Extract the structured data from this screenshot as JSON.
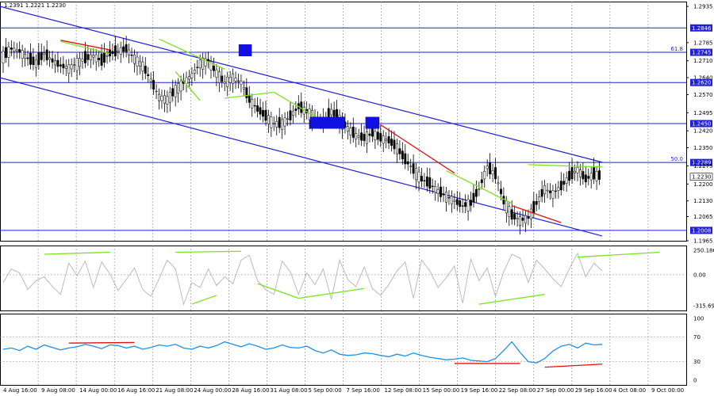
{
  "header": {
    "info": "1.2391 1.2221 1.2230"
  },
  "colors": {
    "candle": "#000000",
    "level": "#1f1fd6",
    "channel": "#1f1fd6",
    "bull_div": "#7ee022",
    "bear_div": "#e01010",
    "cci": "#bbbbbb",
    "rsi": "#1e90e6",
    "marker": "#1010e0",
    "grid": "#888888"
  },
  "chart_data": [
    {
      "type": "candlestick",
      "pane": "price",
      "symbol_info": "1.2391 1.2221 1.2230",
      "ylim": [
        1.1965,
        1.2955
      ],
      "price_ticks": [
        "1.2935",
        "1.2846",
        "1.2785",
        "1.2745",
        "1.2710",
        "1.2640",
        "1.2620",
        "1.2570",
        "1.2495",
        "1.2450",
        "1.2420",
        "1.2350",
        "1.2289",
        "1.2275",
        "1.2230",
        "1.2200",
        "1.2130",
        "1.2065",
        "1.2008",
        "1.1965"
      ],
      "x_labels": [
        "4 Aug 16:00",
        "9 Aug 08:00",
        "14 Aug 00:00",
        "16 Aug 16:00",
        "21 Aug 08:00",
        "24 Aug 00:00",
        "28 Aug 16:00",
        "31 Aug 08:00",
        "5 Sep 00:00",
        "7 Sep 16:00",
        "12 Sep 08:00",
        "15 Sep 00:00",
        "19 Sep 16:00",
        "22 Sep 08:00",
        "27 Sep 00:00",
        "29 Sep 16:00",
        "4 Oct 08:00",
        "9 Oct 00:00"
      ],
      "close_path": [
        1.273,
        1.276,
        1.275,
        1.272,
        1.27,
        1.274,
        1.271,
        1.269,
        1.268,
        1.27,
        1.272,
        1.273,
        1.271,
        1.274,
        1.275,
        1.276,
        1.272,
        1.269,
        1.263,
        1.256,
        1.255,
        1.259,
        1.262,
        1.265,
        1.27,
        1.271,
        1.266,
        1.262,
        1.264,
        1.262,
        1.255,
        1.251,
        1.248,
        1.245,
        1.245,
        1.248,
        1.252,
        1.25,
        1.248,
        1.245,
        1.25,
        1.247,
        1.243,
        1.24,
        1.239,
        1.241,
        1.239,
        1.238,
        1.235,
        1.23,
        1.226,
        1.222,
        1.22,
        1.217,
        1.215,
        1.213,
        1.211,
        1.212,
        1.218,
        1.227,
        1.224,
        1.213,
        1.207,
        1.205,
        1.206,
        1.212,
        1.218,
        1.216,
        1.219,
        1.223,
        1.226,
        1.222,
        1.224,
        1.223
      ],
      "levels": [
        {
          "price": 1.2846,
          "label": "1.2846"
        },
        {
          "price": 1.2745,
          "label": "1.2745",
          "fib": "61.8"
        },
        {
          "price": 1.262,
          "label": "1.2620"
        },
        {
          "price": 1.245,
          "label": "1.2450"
        },
        {
          "price": 1.2289,
          "label": "1.2289",
          "fib": "50.0"
        },
        {
          "price": 1.2008,
          "label": "1.2008"
        }
      ],
      "current_price": "1.2230",
      "channel": {
        "upper": [
          [
            0,
            1.2935
          ],
          [
            73,
            1.229
          ]
        ],
        "lower": [
          [
            0,
            1.264
          ],
          [
            73,
            1.1985
          ]
        ]
      },
      "divergences": [
        {
          "color": "bear",
          "points": [
            [
              7,
              1.2795
            ],
            [
              13,
              1.2755
            ]
          ]
        },
        {
          "color": "bull",
          "points": [
            [
              7,
              1.279
            ],
            [
              13,
              1.274
            ]
          ]
        },
        {
          "color": "bull",
          "points": [
            [
              19,
              1.28
            ],
            [
              27,
              1.2675
            ]
          ]
        },
        {
          "color": "bull",
          "points": [
            [
              21,
              1.2665
            ],
            [
              24,
              1.2545
            ]
          ]
        },
        {
          "color": "bull",
          "points": [
            [
              27,
              1.2555
            ],
            [
              33,
              1.258
            ]
          ]
        },
        {
          "color": "bull",
          "points": [
            [
              33,
              1.258
            ],
            [
              39,
              1.246
            ]
          ]
        },
        {
          "color": "bear",
          "points": [
            [
              46,
              1.2445
            ],
            [
              55,
              1.2245
            ]
          ]
        },
        {
          "color": "bull",
          "points": [
            [
              54,
              1.2255
            ],
            [
              62,
              1.212
            ]
          ]
        },
        {
          "color": "bear",
          "points": [
            [
              62,
              1.211
            ],
            [
              68,
              1.204
            ]
          ]
        },
        {
          "color": "bull",
          "points": [
            [
              64,
              1.228
            ],
            [
              73,
              1.227
            ]
          ]
        }
      ],
      "markers": [
        {
          "x": 29.5,
          "price": 1.2755,
          "w": 1.5
        },
        {
          "x": 39.5,
          "price": 1.2455,
          "w": 4
        },
        {
          "x": 45,
          "price": 1.2455,
          "w": 1.6
        }
      ]
    },
    {
      "type": "line",
      "pane": "cci",
      "ticks": [
        "250.1868",
        "0.00",
        "-315.698"
      ],
      "ylim": [
        -315.698,
        250.1868
      ],
      "values": [
        -80,
        60,
        20,
        -150,
        -60,
        -20,
        -120,
        -200,
        120,
        -10,
        140,
        -130,
        130,
        10,
        -160,
        -50,
        70,
        -150,
        -220,
        -40,
        150,
        60,
        -300,
        -80,
        -130,
        60,
        -110,
        -20,
        -90,
        150,
        200,
        -60,
        -150,
        -200,
        140,
        30,
        -200,
        20,
        -100,
        60,
        -250,
        150,
        -50,
        -120,
        80,
        -140,
        -210,
        -100,
        40,
        130,
        -240,
        150,
        40,
        -130,
        -30,
        90,
        -290,
        160,
        -60,
        70,
        -220,
        30,
        210,
        170,
        -80,
        150,
        60,
        -40,
        -120,
        60,
        220,
        -20,
        120,
        40
      ],
      "divergences": [
        {
          "color": "bull",
          "points": [
            [
              5,
              210
            ],
            [
              13,
              230
            ]
          ]
        },
        {
          "color": "bull",
          "points": [
            [
              21,
              230
            ],
            [
              29,
              240
            ]
          ]
        },
        {
          "color": "bull",
          "points": [
            [
              23,
              -300
            ],
            [
              26,
              -210
            ]
          ]
        },
        {
          "color": "bull",
          "points": [
            [
              31,
              -90
            ],
            [
              36,
              -240
            ]
          ]
        },
        {
          "color": "bull",
          "points": [
            [
              36,
              -240
            ],
            [
              44,
              -140
            ]
          ]
        },
        {
          "color": "bull",
          "points": [
            [
              58,
              -300
            ],
            [
              66,
              -200
            ]
          ]
        },
        {
          "color": "bull",
          "points": [
            [
              70,
              180
            ],
            [
              80,
              230
            ]
          ]
        }
      ]
    },
    {
      "type": "line",
      "pane": "rsi",
      "ticks": [
        "100",
        "70",
        "30",
        "0"
      ],
      "ylim": [
        0,
        100
      ],
      "values": [
        50,
        52,
        48,
        55,
        50,
        57,
        53,
        49,
        52,
        54,
        58,
        55,
        51,
        57,
        56,
        52,
        55,
        50,
        53,
        57,
        55,
        58,
        52,
        50,
        55,
        52,
        56,
        62,
        58,
        54,
        59,
        55,
        50,
        52,
        57,
        53,
        52,
        55,
        48,
        44,
        49,
        42,
        40,
        41,
        44,
        43,
        40,
        38,
        42,
        39,
        44,
        40,
        37,
        35,
        33,
        34,
        36,
        32,
        31,
        30,
        35,
        48,
        62,
        45,
        30,
        28,
        35,
        47,
        55,
        58,
        52,
        60,
        57,
        58
      ],
      "divergences": [
        {
          "color": "bear",
          "points": [
            [
              8,
              60
            ],
            [
              16,
              61
            ]
          ]
        },
        {
          "color": "bear",
          "points": [
            [
              55,
              27
            ],
            [
              63,
              27
            ]
          ]
        },
        {
          "color": "bear",
          "points": [
            [
              66,
              21
            ],
            [
              73,
              26
            ]
          ]
        }
      ]
    }
  ]
}
